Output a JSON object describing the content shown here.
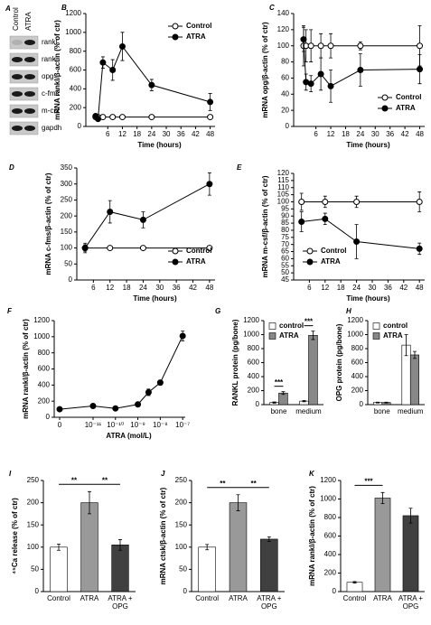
{
  "chart_data": [
    {
      "type": "gel",
      "panel": "A",
      "lanes": [
        "Control",
        "ATRA"
      ],
      "bands": [
        "rankl",
        "rank",
        "opg",
        "c-fms",
        "m-csf",
        "gapdh"
      ]
    },
    {
      "type": "line",
      "panel": "B",
      "ylabel": "mRNA rankl/β-actin (% of ctr)",
      "xlabel": "Time (hours)",
      "x": [
        1,
        2,
        4,
        8,
        12,
        24,
        48
      ],
      "xlim": [
        -3,
        50
      ],
      "xticks": [
        6,
        12,
        18,
        24,
        30,
        36,
        42,
        48
      ],
      "ylim": [
        0,
        1200
      ],
      "yticks": [
        0,
        200,
        400,
        600,
        800,
        1000,
        1200
      ],
      "legend": "upper right",
      "series": [
        {
          "name": "Control",
          "color": "#000000",
          "fill": "#ffffff",
          "values": [
            100,
            100,
            100,
            100,
            100,
            100,
            100
          ],
          "errors": [
            10,
            10,
            10,
            20,
            20,
            15,
            15
          ]
        },
        {
          "name": "ATRA",
          "color": "#000000",
          "fill": "#000000",
          "values": [
            110,
            80,
            680,
            600,
            850,
            440,
            260
          ],
          "errors": [
            20,
            15,
            60,
            110,
            150,
            60,
            90
          ]
        }
      ]
    },
    {
      "type": "line",
      "panel": "C",
      "ylabel": "mRNA opg/β-actin (% of ctr)",
      "xlabel": "Time (hours)",
      "x": [
        1,
        2,
        4,
        8,
        12,
        24,
        48
      ],
      "xlim": [
        -3,
        50
      ],
      "xticks": [
        6,
        12,
        18,
        24,
        30,
        36,
        42,
        48
      ],
      "ylim": [
        0,
        140
      ],
      "yticks": [
        0,
        20,
        40,
        60,
        80,
        100,
        120,
        140
      ],
      "legend": "lower right",
      "series": [
        {
          "name": "Control",
          "color": "#000000",
          "fill": "#ffffff",
          "values": [
            100,
            100,
            100,
            100,
            100,
            100,
            100
          ],
          "errors": [
            25,
            20,
            20,
            15,
            15,
            5,
            25
          ]
        },
        {
          "name": "ATRA",
          "color": "#000000",
          "fill": "#000000",
          "values": [
            108,
            55,
            53,
            65,
            50,
            70,
            71
          ],
          "errors": [
            15,
            10,
            10,
            20,
            20,
            20,
            18
          ]
        }
      ]
    },
    {
      "type": "line",
      "panel": "D",
      "ylabel": "mRNA c-fms/β-actin (% of ctr)",
      "xlabel": "Time (hours)",
      "x": [
        3,
        12,
        24,
        48
      ],
      "xlim": [
        0,
        50
      ],
      "xticks": [
        6,
        12,
        18,
        24,
        30,
        36,
        42,
        48
      ],
      "ylim": [
        0,
        350
      ],
      "yticks": [
        0,
        50,
        100,
        150,
        200,
        250,
        300,
        350
      ],
      "legend": "lower right",
      "series": [
        {
          "name": "Control",
          "color": "#000000",
          "fill": "#ffffff",
          "values": [
            100,
            100,
            100,
            100
          ],
          "errors": [
            10,
            5,
            5,
            5
          ]
        },
        {
          "name": "ATRA",
          "color": "#000000",
          "fill": "#000000",
          "values": [
            100,
            213,
            188,
            300
          ],
          "errors": [
            15,
            35,
            25,
            35
          ]
        }
      ]
    },
    {
      "type": "line",
      "panel": "E",
      "ylabel": "mRNA m-csf/β-actin (% of ctr)",
      "xlabel": "Time (hours)",
      "x": [
        3,
        12,
        24,
        48
      ],
      "xlim": [
        0,
        50
      ],
      "xticks": [
        6,
        12,
        18,
        24,
        30,
        36,
        42,
        48
      ],
      "ylim": [
        45,
        120
      ],
      "yticks": [
        45,
        50,
        55,
        60,
        65,
        70,
        75,
        80,
        85,
        90,
        95,
        100,
        105,
        110,
        115,
        120
      ],
      "legend": "lower left",
      "series": [
        {
          "name": "Control",
          "color": "#000000",
          "fill": "#ffffff",
          "values": [
            100,
            100,
            100,
            100
          ],
          "errors": [
            6,
            4,
            4,
            7
          ]
        },
        {
          "name": "ATRA",
          "color": "#000000",
          "fill": "#000000",
          "values": [
            86,
            88,
            72,
            67
          ],
          "errors": [
            7,
            4,
            12,
            4
          ]
        }
      ]
    },
    {
      "type": "line",
      "panel": "F",
      "ylabel": "mRNA rankl/β-actin (% of ctr)",
      "xlabel": "ATRA (mol/L)",
      "xscale": "log",
      "x": [
        0,
        1e-11,
        1e-10,
        1e-09,
        3e-09,
        1e-08,
        1e-07
      ],
      "xlim": [
        3e-12,
        1.3e-07
      ],
      "xticks": [
        0,
        {
          "value": 1e-11,
          "label": "10⁻¹¹"
        },
        {
          "value": 1e-10,
          "label": "10⁻¹⁰"
        },
        {
          "value": 1e-09,
          "label": "10⁻⁹"
        },
        {
          "value": 1e-08,
          "label": "10⁻⁸"
        },
        {
          "value": 1e-07,
          "label": "10⁻⁷"
        }
      ],
      "ylim": [
        0,
        1200
      ],
      "yticks": [
        0,
        200,
        400,
        600,
        800,
        1000,
        1200
      ],
      "series": [
        {
          "color": "#000000",
          "fill": "#000000",
          "values": [
            100,
            140,
            110,
            160,
            310,
            430,
            1010
          ],
          "errors": [
            10,
            20,
            10,
            20,
            40,
            30,
            60
          ]
        }
      ]
    },
    {
      "type": "bar",
      "panel": "G",
      "ylabel": "RANKL protein (pg/bone)",
      "categories": [
        "bone",
        "medium"
      ],
      "ylim": [
        0,
        1200
      ],
      "yticks": [
        0,
        200,
        400,
        600,
        800,
        1000,
        1200
      ],
      "legend": "upper left",
      "annotations": [
        "***",
        "***"
      ],
      "series": [
        {
          "name": "control",
          "color": "#ffffff",
          "values": [
            30,
            50
          ],
          "errors": [
            8,
            10
          ]
        },
        {
          "name": "ATRA",
          "color": "#888888",
          "values": [
            165,
            990
          ],
          "errors": [
            20,
            60
          ]
        }
      ]
    },
    {
      "type": "bar",
      "panel": "H",
      "ylabel": "OPG protein (pg/bone)",
      "categories": [
        "bone",
        "medium"
      ],
      "ylim": [
        0,
        1200
      ],
      "yticks": [
        0,
        200,
        400,
        600,
        800,
        1000,
        1200
      ],
      "legend": "upper left",
      "series": [
        {
          "name": "control",
          "color": "#ffffff",
          "values": [
            30,
            850
          ],
          "errors": [
            5,
            150
          ]
        },
        {
          "name": "ATRA",
          "color": "#888888",
          "values": [
            30,
            710
          ],
          "errors": [
            5,
            50
          ]
        }
      ]
    },
    {
      "type": "bar",
      "panel": "I",
      "ylabel": "⁴⁵Ca release (% of ctr)",
      "categories": [
        "Control",
        "ATRA",
        "ATRA + OPG"
      ],
      "values": [
        100,
        200,
        105
      ],
      "errors": [
        7,
        25,
        12
      ],
      "colors": [
        "#ffffff",
        "#999999",
        "#404040"
      ],
      "ylim": [
        0,
        250
      ],
      "yticks": [
        0,
        50,
        100,
        150,
        200,
        250
      ],
      "annotations": [
        "**",
        "**"
      ]
    },
    {
      "type": "bar",
      "panel": "J",
      "ylabel": "mRNA ctsk/β-actin (% of ctr)",
      "categories": [
        "Control",
        "ATRA",
        "ATRA + OPG"
      ],
      "values": [
        100,
        200,
        118
      ],
      "errors": [
        6,
        18,
        5
      ],
      "colors": [
        "#ffffff",
        "#999999",
        "#404040"
      ],
      "ylim": [
        0,
        250
      ],
      "yticks": [
        0,
        50,
        100,
        150,
        200,
        250
      ],
      "annotations": [
        "**",
        "**"
      ]
    },
    {
      "type": "bar",
      "panel": "K",
      "ylabel": "mRNA rankl/β-actin (% of ctr)",
      "categories": [
        "Control",
        "ATRA",
        "ATRA + OPG"
      ],
      "values": [
        100,
        1010,
        820
      ],
      "errors": [
        8,
        60,
        80
      ],
      "colors": [
        "#ffffff",
        "#999999",
        "#404040"
      ],
      "ylim": [
        0,
        1200
      ],
      "yticks": [
        0,
        200,
        400,
        600,
        800,
        1000,
        1200
      ],
      "annotations": [
        "***"
      ]
    }
  ]
}
